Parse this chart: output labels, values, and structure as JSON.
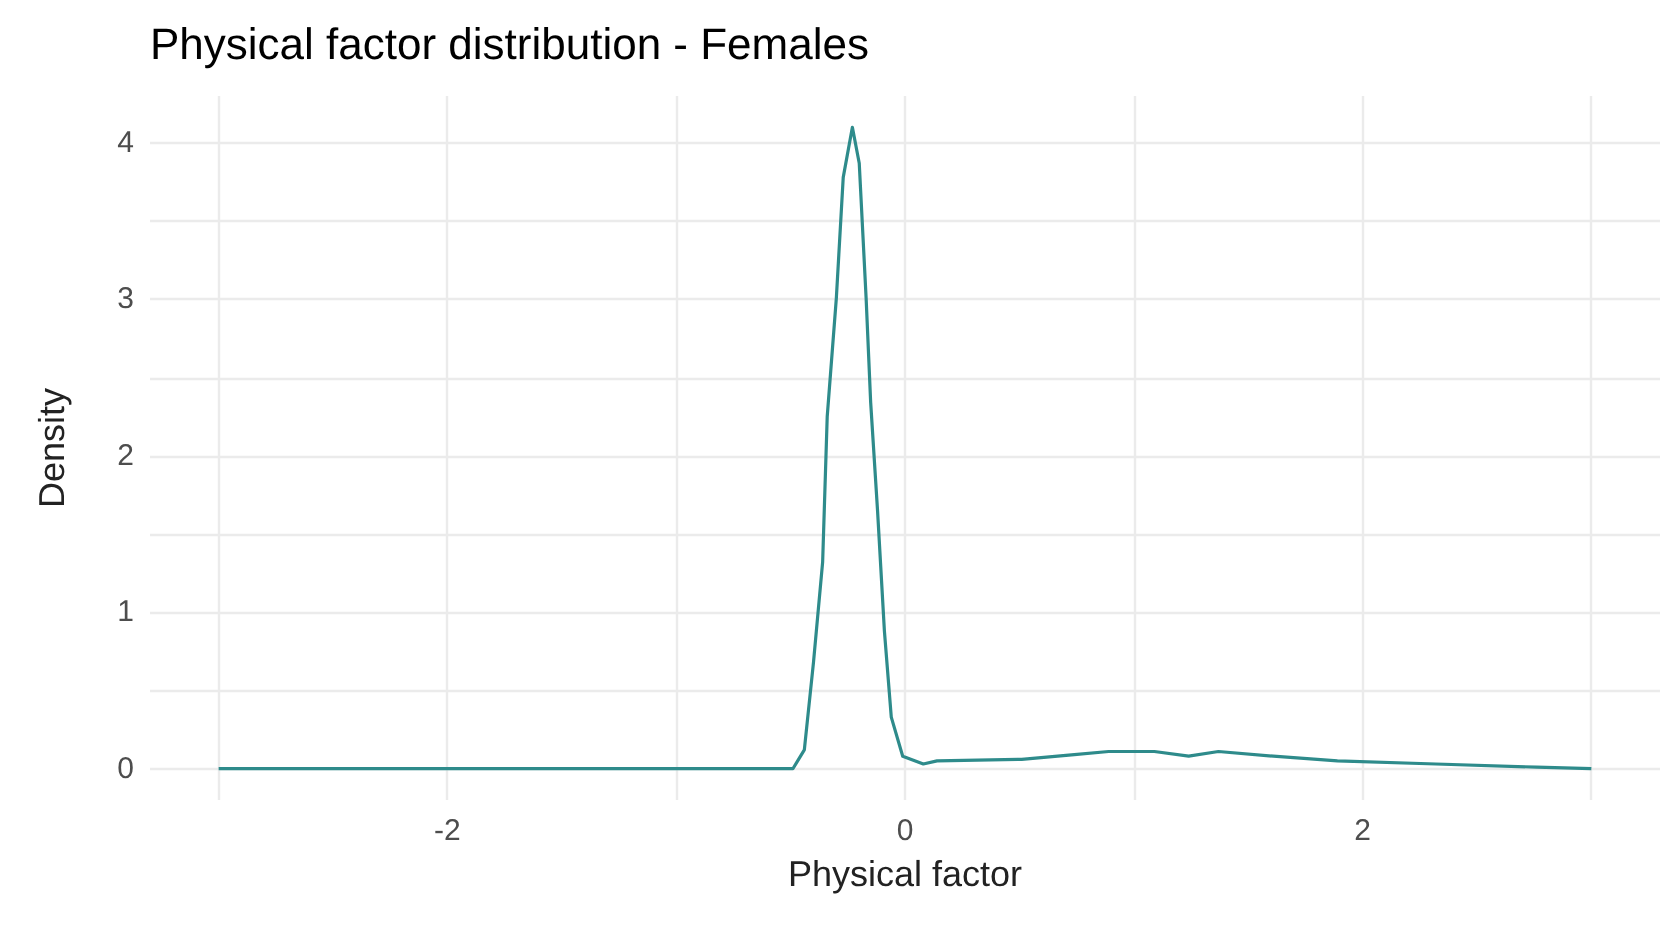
{
  "chart_data": {
    "type": "line",
    "title": "Physical factor distribution - Females",
    "xlabel": "Physical factor",
    "ylabel": "Density",
    "x": [
      -3,
      -0.6,
      -0.49,
      -0.44,
      -0.4,
      -0.36,
      -0.34,
      -0.3,
      -0.27,
      -0.23,
      -0.2,
      -0.17,
      -0.15,
      -0.12,
      -0.09,
      -0.06,
      -0.01,
      0.08,
      0.14,
      0.51,
      0.74,
      0.89,
      1.09,
      1.24,
      1.37,
      1.61,
      1.89,
      2.32,
      2.76,
      3
    ],
    "series": [
      {
        "color": "#2e8b8b",
        "values": [
          0,
          0,
          0,
          0.12,
          0.68,
          1.32,
          2.25,
          3.01,
          3.78,
          4.1,
          3.87,
          3.01,
          2.34,
          1.65,
          0.88,
          0.33,
          0.08,
          0.03,
          0.05,
          0.06,
          0.09,
          0.11,
          0.11,
          0.08,
          0.11,
          0.08,
          0.05,
          0.03,
          0.01,
          0
        ]
      }
    ],
    "xlim": [
      -3.3,
      3.3
    ],
    "ylim": [
      -0.2,
      4.3
    ],
    "xticks": [
      {
        "value": -3,
        "label": null
      },
      -2,
      {
        "value": -1,
        "label": null
      },
      0,
      {
        "value": 1,
        "label": null
      },
      2,
      {
        "value": 3,
        "label": null
      }
    ],
    "yticks": [
      0,
      {
        "value": 0.5,
        "label": null
      },
      1,
      {
        "value": 1.5,
        "label": null
      },
      2,
      {
        "value": 2.5,
        "label": null
      },
      3,
      {
        "value": 3.5,
        "label": null
      },
      4
    ],
    "grid": true,
    "marker": "none",
    "line_style": "solid"
  }
}
